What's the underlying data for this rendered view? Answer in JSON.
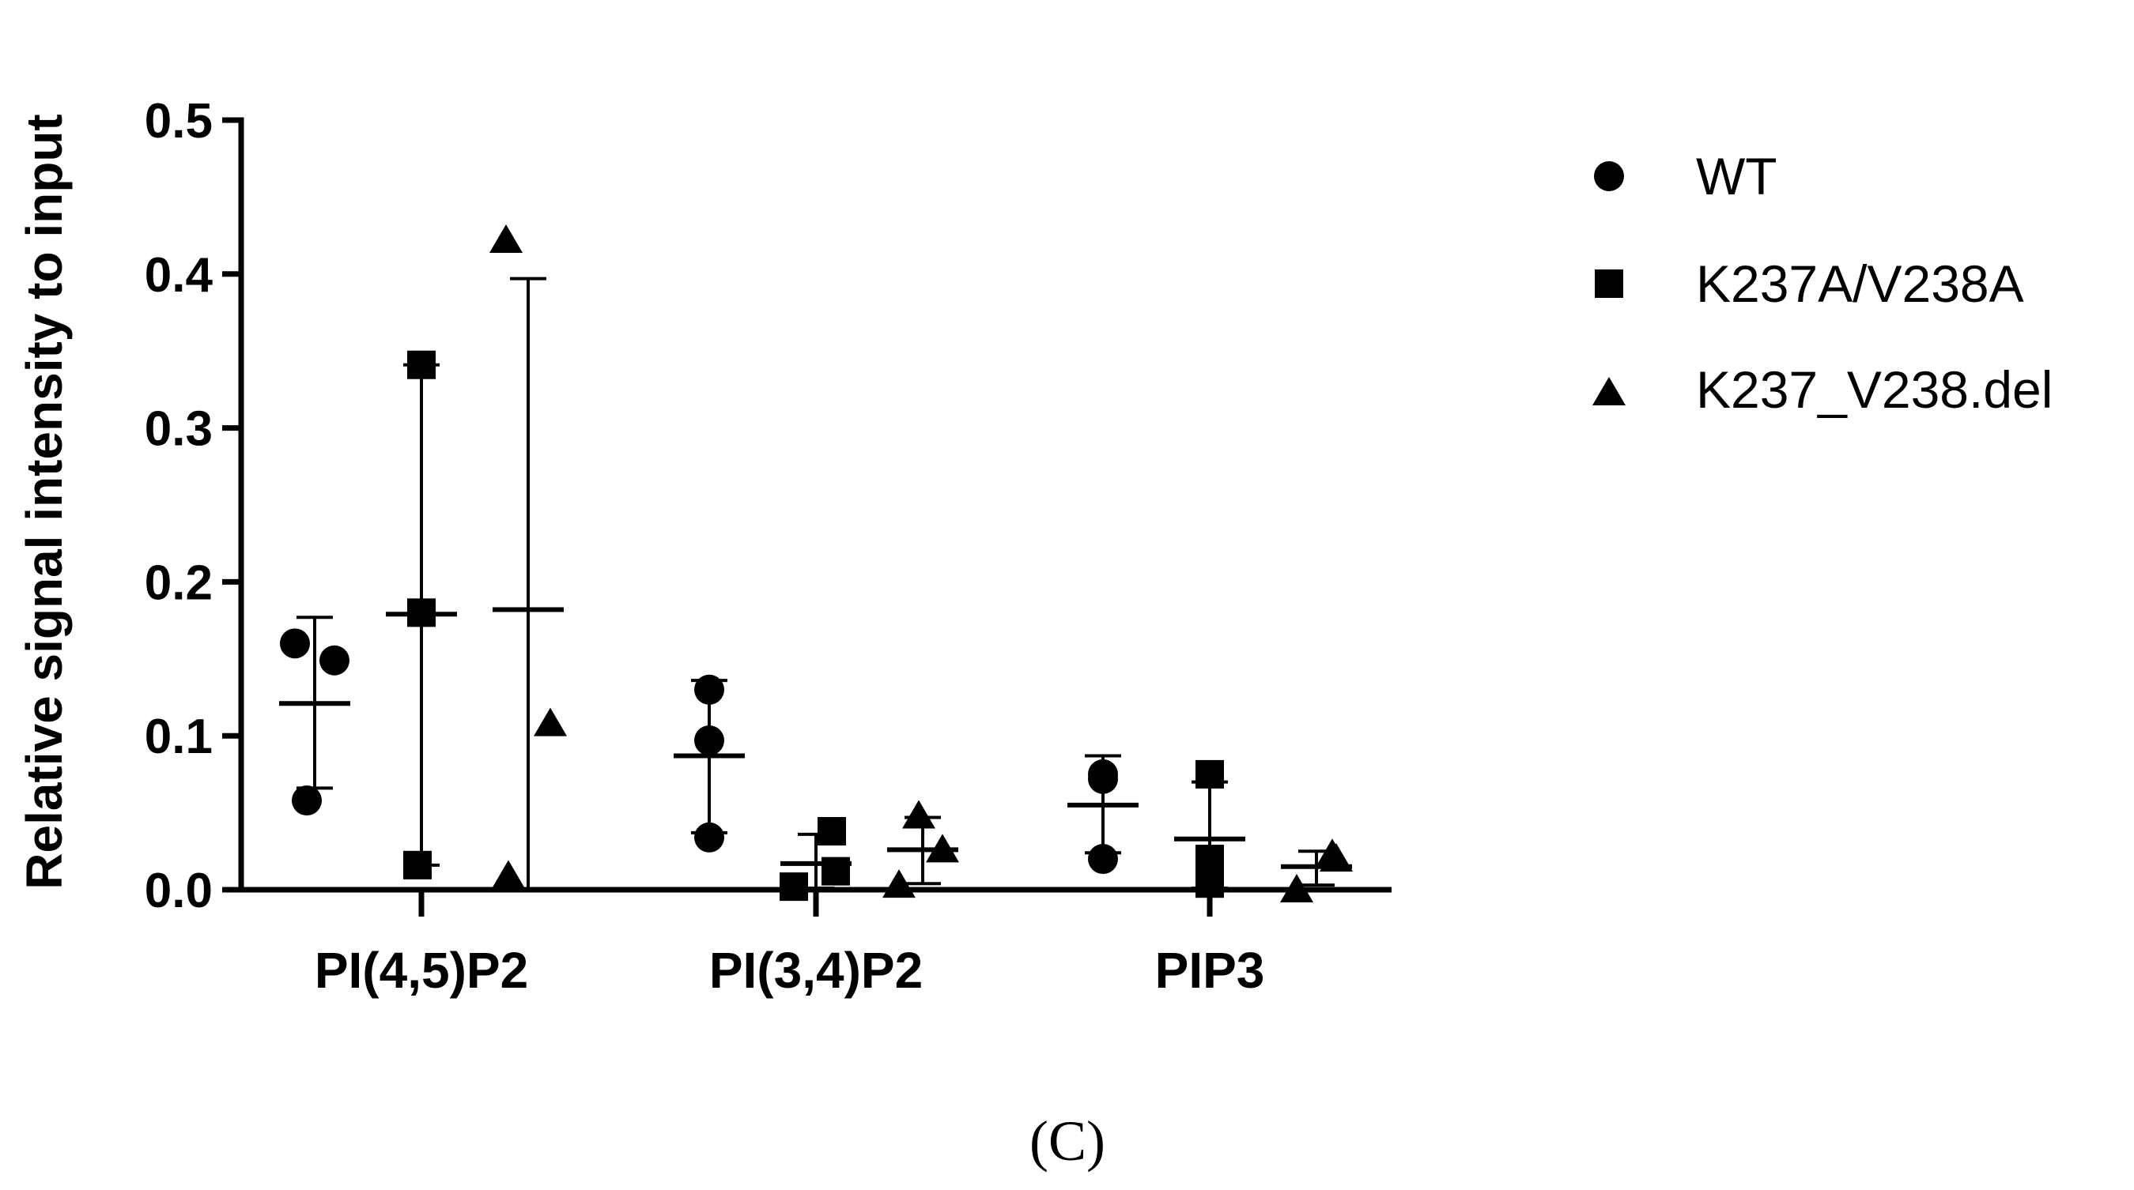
{
  "panel_label": "(C)",
  "chart_data": {
    "type": "scatter",
    "title": "",
    "ylabel": "Relative signal intensity to input",
    "xlabel": "",
    "ylim": [
      0,
      0.5
    ],
    "yticks": [
      "0.0",
      "0.1",
      "0.2",
      "0.3",
      "0.4",
      "0.5"
    ],
    "ytick_values": [
      0,
      0.1,
      0.2,
      0.3,
      0.4,
      0.5
    ],
    "categories": [
      "PI(4,5)P2",
      "PI(3,4)P2",
      "PIP3"
    ],
    "legend_position": "right",
    "grid": false,
    "series": [
      {
        "name": "WT",
        "marker": "circle",
        "groups": [
          {
            "points": [
              0.16,
              0.149,
              0.058
            ],
            "mean": 0.121,
            "sd_low": 0.066,
            "sd_high": 0.177
          },
          {
            "points": [
              0.13,
              0.097,
              0.034
            ],
            "mean": 0.087,
            "sd_low": 0.037,
            "sd_high": 0.136
          },
          {
            "points": [
              0.075,
              0.072,
              0.02
            ],
            "mean": 0.055,
            "sd_low": 0.024,
            "sd_high": 0.087
          }
        ]
      },
      {
        "name": "K237A/V238A",
        "marker": "square",
        "groups": [
          {
            "points": [
              0.341,
              0.18,
              0.016
            ],
            "mean": 0.179,
            "sd_low": 0.016,
            "sd_high": 0.341
          },
          {
            "points": [
              0.038,
              0.012,
              0.002
            ],
            "mean": 0.017,
            "sd_low": 0.001,
            "sd_high": 0.036
          },
          {
            "points": [
              0.075,
              0.02,
              0.004
            ],
            "mean": 0.033,
            "sd_low": 0.001,
            "sd_high": 0.07
          }
        ]
      },
      {
        "name": "K237_V238.del",
        "marker": "triangle",
        "groups": [
          {
            "points": [
              0.422,
              0.108,
              0.009
            ],
            "mean": 0.182,
            "sd_low": 0.0,
            "sd_high": 0.397
          },
          {
            "points": [
              0.048,
              0.026,
              0.003
            ],
            "mean": 0.026,
            "sd_low": 0.004,
            "sd_high": 0.047
          },
          {
            "points": [
              0.023,
              0.02,
              0.0
            ],
            "mean": 0.015,
            "sd_low": 0.003,
            "sd_high": 0.025
          }
        ]
      }
    ]
  }
}
